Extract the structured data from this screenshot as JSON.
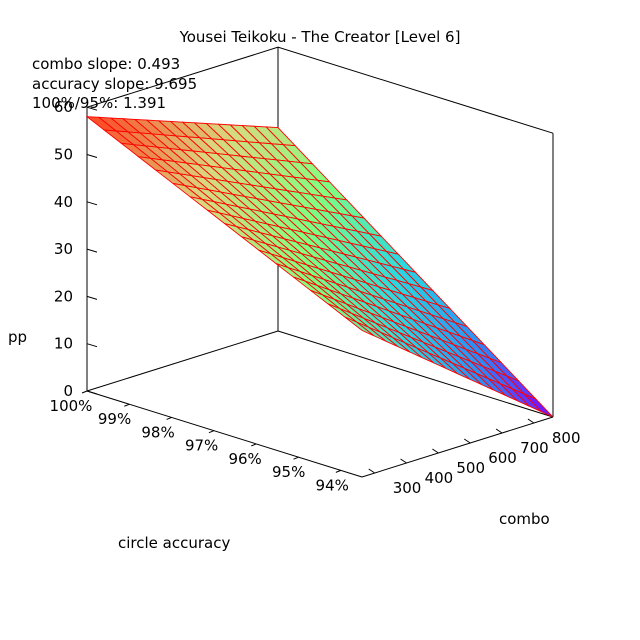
{
  "chart_data": {
    "type": "surface",
    "title": "Yousei Teikoku - The Creator [Level 6]",
    "annotations": [
      "combo slope: 0.493",
      "accuracy slope: 9.695",
      "100%/95%: 1.391"
    ],
    "zlabel": "pp",
    "xlabel": "circle accuracy",
    "ylabel": "combo",
    "x_ticks": [
      "100%",
      "99%",
      "98%",
      "97%",
      "96%",
      "95%",
      "94%"
    ],
    "x_tick_values": [
      100,
      99,
      98,
      97,
      96,
      95,
      94
    ],
    "y_ticks": [
      "300",
      "400",
      "500",
      "600",
      "700",
      "800"
    ],
    "y_tick_values": [
      300,
      400,
      500,
      600,
      700,
      800
    ],
    "z_ticks": [
      "0",
      "10",
      "20",
      "30",
      "40",
      "50",
      "60"
    ],
    "z_tick_values": [
      0,
      10,
      20,
      30,
      40,
      50,
      60
    ],
    "xlim": [
      100,
      93.5
    ],
    "ylim": [
      260,
      860
    ],
    "zlim": [
      0,
      60
    ],
    "corners": [
      {
        "accuracy": 100,
        "combo": 260,
        "pp": 58
      },
      {
        "accuracy": 100,
        "combo": 860,
        "pp": 43
      },
      {
        "accuracy": 93.5,
        "combo": 260,
        "pp": 31
      },
      {
        "accuracy": 93.5,
        "combo": 860,
        "pp": 0
      }
    ],
    "grid_lines": 16,
    "colormap": [
      "#8000ff",
      "#2d8cf6",
      "#2ad8e0",
      "#80ff80",
      "#d8d880",
      "#ff4020"
    ],
    "mesh_color": "#ff0000",
    "grid": true
  }
}
